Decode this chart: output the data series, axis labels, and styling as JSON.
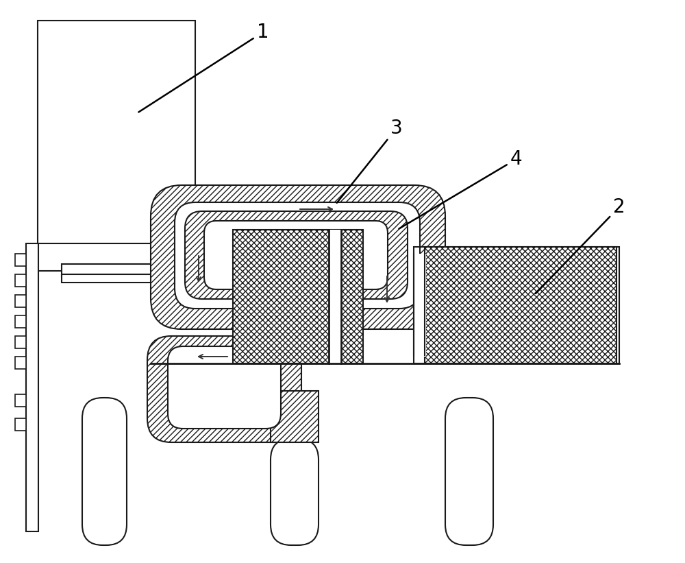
{
  "bg_color": "#ffffff",
  "line_color": "#1a1a1a",
  "lw": 1.5,
  "label_fontsize": 20,
  "figw": 10.0,
  "figh": 8.21,
  "dpi": 100
}
